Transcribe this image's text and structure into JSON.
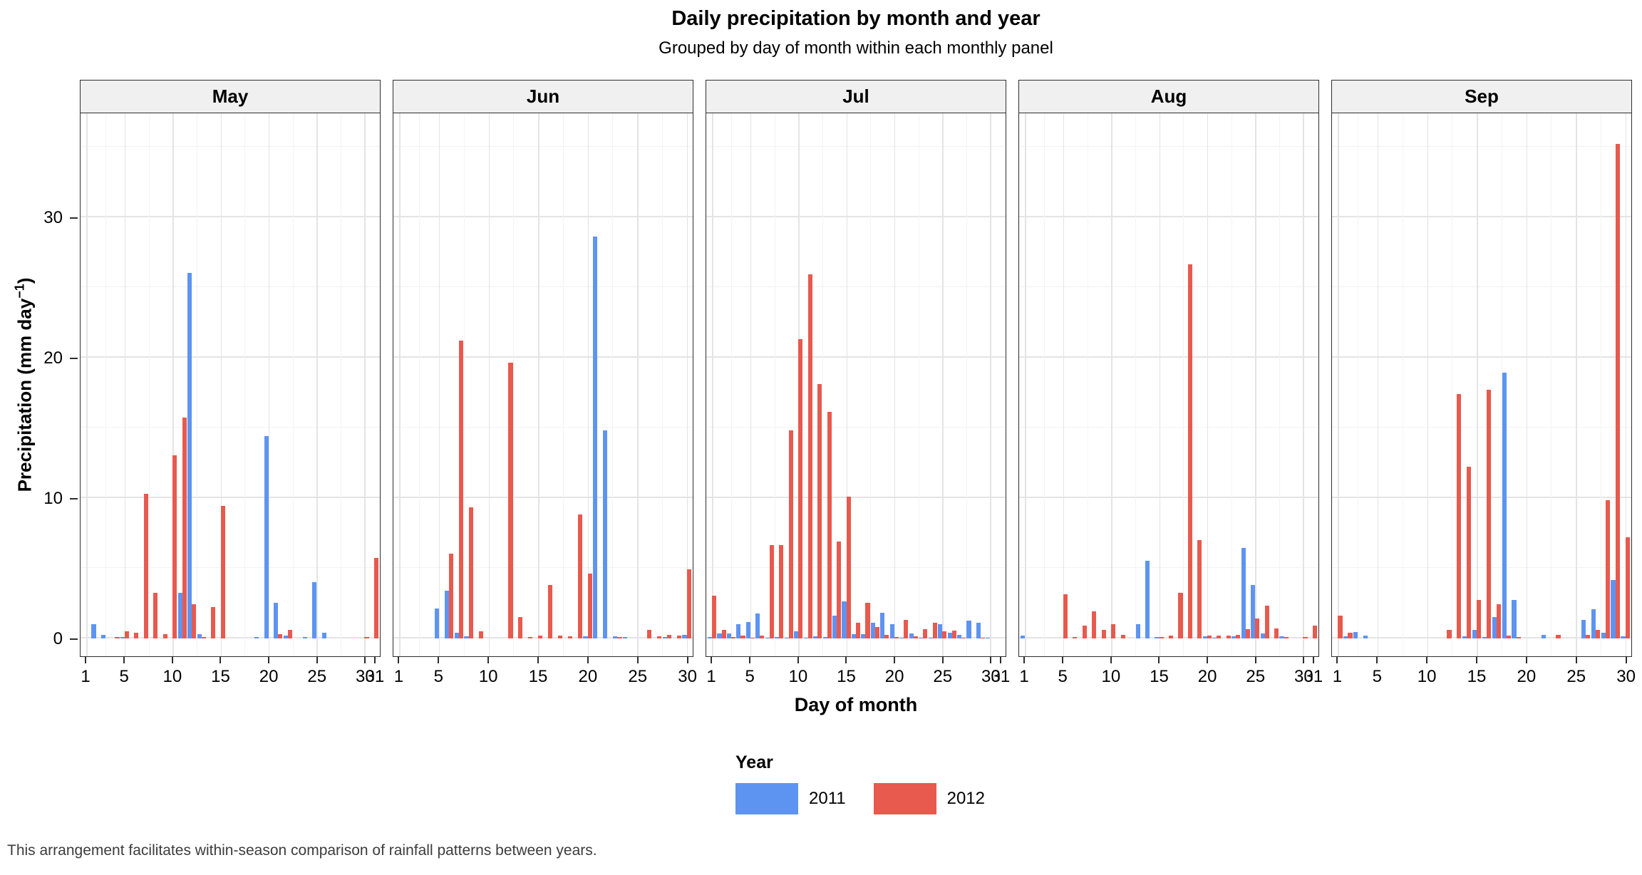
{
  "title": "Daily precipitation by month and year",
  "subtitle": "Grouped by day of month within each monthly panel",
  "footer": "This arrangement facilitates within-season comparison of rainfall patterns between years.",
  "legend": {
    "title": "Year",
    "entries": [
      {
        "label": "2011",
        "color": "#5e94f1"
      },
      {
        "label": "2012",
        "color": "#e8594e"
      }
    ]
  },
  "chart_data": {
    "type": "bar",
    "title": "Daily precipitation by month and year",
    "subtitle": "Grouped by day of month within each monthly panel",
    "xlabel": "Day of month",
    "ylabel": "Precipitation (mm day−1)",
    "ylabel_parts": {
      "main": "Precipitation (mm day",
      "sup": "−1",
      "close": ")"
    },
    "ylim": [
      0,
      37.5
    ],
    "yticks": [
      0,
      10,
      20,
      30
    ],
    "grid": true,
    "legend_position": "bottom",
    "series_colors": {
      "2011": "#5e94f1",
      "2012": "#e8594e"
    },
    "panels": [
      {
        "month": "May",
        "days": 31,
        "xticks": [
          1,
          5,
          10,
          15,
          20,
          25,
          30,
          31
        ],
        "series": [
          {
            "name": "2011",
            "values": {
              "2": 1.0,
              "3": 0.25,
              "5": 0.1,
              "11": 3.2,
              "12": 26.0,
              "13": 0.3,
              "19": 0.1,
              "20": 14.4,
              "21": 2.5,
              "22": 0.2,
              "24": 0.1,
              "25": 4.0,
              "26": 0.4
            }
          },
          {
            "name": "2012",
            "values": {
              "4": 0.1,
              "5": 0.5,
              "6": 0.4,
              "7": 10.3,
              "8": 3.2,
              "9": 0.3,
              "10": 13.0,
              "11": 15.7,
              "12": 2.4,
              "13": 0.1,
              "14": 2.2,
              "15": 9.4,
              "21": 0.3,
              "22": 0.6,
              "30": 0.1,
              "31": 5.7
            }
          }
        ]
      },
      {
        "month": "Jun",
        "days": 30,
        "xticks": [
          1,
          5,
          10,
          15,
          20,
          25,
          30
        ],
        "series": [
          {
            "name": "2011",
            "values": {
              "5": 2.1,
              "6": 3.4,
              "7": 0.4,
              "8": 0.15,
              "20": 0.15,
              "21": 28.6,
              "22": 14.8,
              "23": 0.15,
              "24": 0.1,
              "28": 0.1,
              "30": 0.25
            }
          },
          {
            "name": "2012",
            "values": {
              "6": 6.0,
              "7": 21.2,
              "8": 9.3,
              "9": 0.5,
              "12": 19.6,
              "13": 1.5,
              "14": 0.1,
              "15": 0.2,
              "16": 3.8,
              "17": 0.2,
              "18": 0.15,
              "19": 8.8,
              "20": 4.6,
              "23": 0.1,
              "26": 0.6,
              "27": 0.15,
              "28": 0.25,
              "29": 0.2,
              "30": 4.9
            }
          }
        ]
      },
      {
        "month": "Jul",
        "days": 31,
        "xticks": [
          1,
          5,
          10,
          15,
          20,
          25,
          30,
          31
        ],
        "series": [
          {
            "name": "2011",
            "values": {
              "1": 0.1,
              "2": 0.33,
              "3": 0.33,
              "4": 1.0,
              "5": 1.15,
              "6": 1.75,
              "7": 0.05,
              "8": 0.1,
              "9": 0.05,
              "10": 0.5,
              "11": 0.05,
              "12": 0.13,
              "13": 0.1,
              "14": 1.6,
              "15": 2.6,
              "16": 0.3,
              "17": 0.3,
              "18": 1.1,
              "19": 1.8,
              "20": 1.0,
              "21": 0.05,
              "22": 0.35,
              "23": 0.05,
              "24": 0.05,
              "25": 1.0,
              "26": 0.4,
              "27": 0.25,
              "28": 1.25,
              "29": 1.1,
              "30": 0.05
            }
          },
          {
            "name": "2012",
            "values": {
              "1": 3.0,
              "2": 0.6,
              "3": 0.1,
              "4": 0.2,
              "5": 0.05,
              "6": 0.17,
              "7": 6.6,
              "8": 6.6,
              "9": 14.8,
              "10": 21.3,
              "11": 25.9,
              "12": 18.1,
              "13": 16.1,
              "14": 6.9,
              "15": 10.1,
              "16": 1.1,
              "17": 2.5,
              "18": 0.8,
              "19": 0.25,
              "20": 0.1,
              "21": 1.3,
              "22": 0.15,
              "23": 0.65,
              "24": 1.1,
              "25": 0.5,
              "26": 0.55,
              "27": 0.05,
              "29": 0.05
            }
          }
        ]
      },
      {
        "month": "Aug",
        "days": 31,
        "xticks": [
          1,
          5,
          10,
          15,
          20,
          25,
          30,
          31
        ],
        "series": [
          {
            "name": "2011",
            "values": {
              "1": 0.2,
              "13": 1.0,
              "14": 5.5,
              "15": 0.1,
              "20": 0.15,
              "21": 0.05,
              "23": 0.13,
              "24": 6.4,
              "25": 3.8,
              "26": 0.35,
              "28": 0.15
            }
          },
          {
            "name": "2012",
            "values": {
              "5": 3.1,
              "6": 0.1,
              "7": 0.9,
              "8": 1.9,
              "9": 0.6,
              "10": 1.0,
              "11": 0.25,
              "15": 0.1,
              "16": 0.2,
              "17": 3.2,
              "18": 26.6,
              "19": 7.0,
              "20": 0.2,
              "21": 0.2,
              "22": 0.2,
              "23": 0.23,
              "24": 0.65,
              "25": 1.4,
              "26": 2.3,
              "27": 0.7,
              "28": 0.1,
              "30": 0.1,
              "31": 0.9
            }
          }
        ]
      },
      {
        "month": "Sep",
        "days": 30,
        "xticks": [
          1,
          5,
          10,
          15,
          20,
          25,
          30
        ],
        "series": [
          {
            "name": "2011",
            "values": {
              "2": 0.15,
              "3": 0.45,
              "4": 0.2,
              "14": 0.13,
              "15": 0.6,
              "16": 0.1,
              "17": 1.5,
              "18": 18.9,
              "19": 2.7,
              "22": 0.25,
              "26": 1.3,
              "27": 2.05,
              "28": 0.4,
              "29": 4.15,
              "30": 0.15
            }
          },
          {
            "name": "2012",
            "values": {
              "1": 1.6,
              "2": 0.4,
              "12": 0.6,
              "13": 17.4,
              "14": 12.2,
              "15": 2.7,
              "16": 17.7,
              "17": 2.4,
              "18": 0.2,
              "19": 0.1,
              "23": 0.25,
              "26": 0.25,
              "27": 0.6,
              "28": 9.8,
              "29": 35.2,
              "30": 7.2
            }
          }
        ]
      }
    ]
  }
}
